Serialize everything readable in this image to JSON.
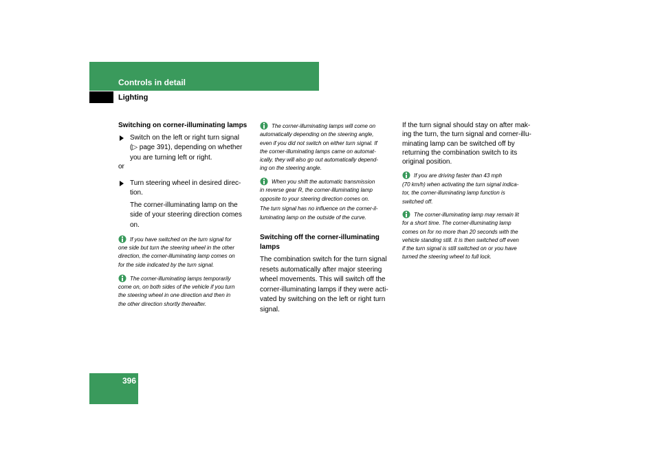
{
  "header": {
    "section": "Controls in detail",
    "subsection": "Lighting"
  },
  "page_number": "396",
  "column_1": {
    "heading": "Switching on corner-illuminating lamps",
    "step_1": [
      "Switch on the left or right turn signal",
      "(▷ page 391), depending on whether",
      "you are turning left or right."
    ],
    "or": "or",
    "step_2": [
      "Turn steering wheel in desired direc-",
      "tion."
    ],
    "result": [
      "The corner-illuminating lamp on the",
      "side of your steering direction comes",
      "on."
    ],
    "notes": [
      [
        "If you have switched on the turn signal for",
        "one side but turn the steering wheel in the other",
        "direction, the corner-illuminating lamp comes on",
        "for the side indicated by the turn signal."
      ],
      [
        "The corner-illuminating lamps temporarily",
        "come on, on both sides of the vehicle if you turn",
        "the steering wheel in one direction and then in",
        "the other direction shortly thereafter."
      ]
    ]
  },
  "column_2": {
    "notes": [
      [
        "The corner-illuminating lamps will come on",
        "automatically depending on the steering angle,",
        "even if you did not switch on either turn signal. If",
        "the corner-illuminating lamps came on automat-",
        "ically, they will also go out automatically depend-",
        "ing on the steering angle."
      ],
      [
        "When you shift the automatic transmission",
        "in reverse gear R, the corner-illuminating lamp",
        "opposite to your steering direction comes on."
      ]
    ],
    "note_continuation": [
      "The turn signal has no influence on the corner-il-",
      "luminating lamp on the outside of the curve."
    ],
    "heading": [
      "Switching off the corner-illuminating",
      "lamps"
    ],
    "body": [
      "The combination switch for the turn signal",
      "resets automatically after major steering",
      "wheel movements. This will switch off the",
      "corner-illuminating lamps if they were acti-",
      "vated by switching on the left or right turn",
      "signal."
    ]
  },
  "column_3": {
    "body": [
      "If the turn signal should stay on after mak-",
      "ing the turn, the turn signal and corner-illu-",
      "minating lamp can be switched off by",
      "returning the combination switch to its",
      "original position."
    ],
    "notes": [
      [
        "If you are driving faster than 43 mph",
        "(70 km/h) when activating the turn signal indica-",
        "tor, the corner-illuminating lamp function is",
        "switched off."
      ],
      [
        "The corner-illuminating lamp may remain lit",
        "for a short time. The corner-illuminating lamp",
        "comes on for no more than 20 seconds with the",
        "vehicle standing still. It is then switched off even",
        "if the turn signal is still switched on or you have",
        "turned the steering wheel to full lock."
      ]
    ]
  }
}
